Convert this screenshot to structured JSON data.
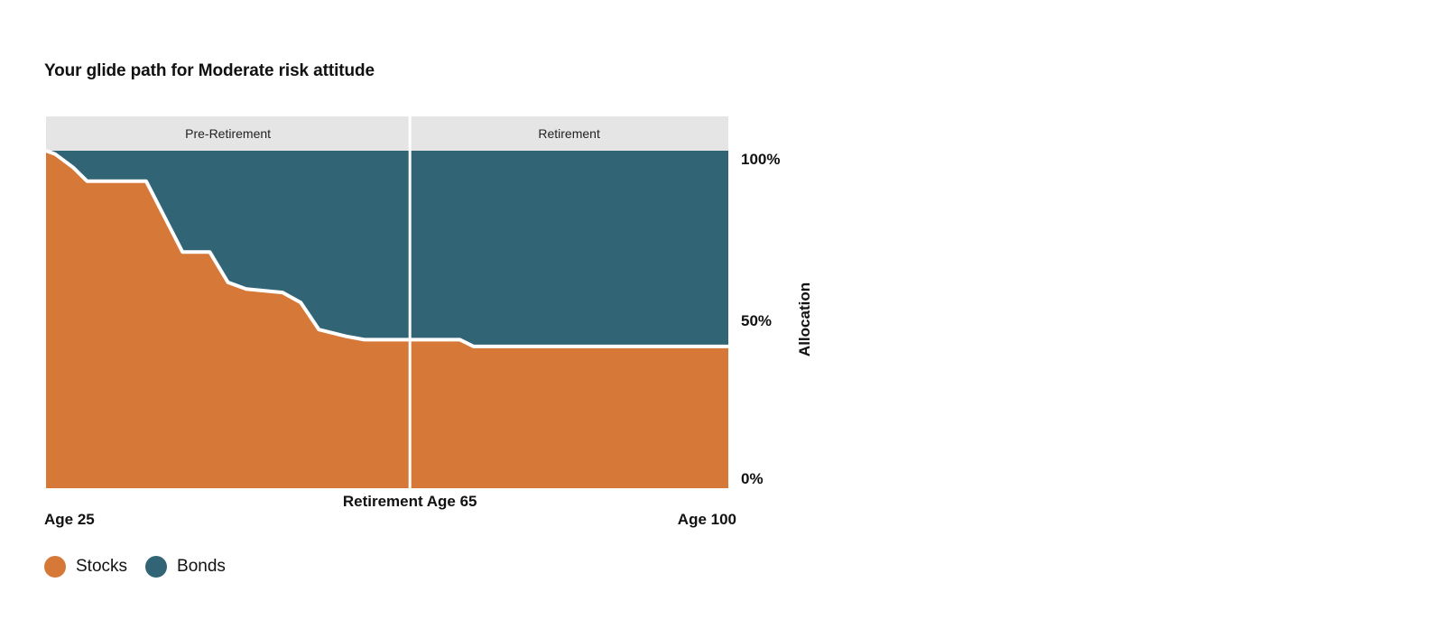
{
  "title": "Your glide path for Moderate risk attitude",
  "colors": {
    "stocks": "#D67838",
    "bonds": "#316576",
    "phase_band": "#E5E5E5",
    "divider": "#FFFFFF"
  },
  "chart_data": {
    "type": "area",
    "title": "Your glide path for Moderate risk attitude",
    "ylabel": "Allocation",
    "ylim": [
      0,
      100
    ],
    "xlim": [
      25,
      100
    ],
    "y_tick_labels": [
      "100%",
      "50%",
      "0%"
    ],
    "x_tick_labels": [
      "Age 25",
      "Retirement Age 65",
      "Age 100"
    ],
    "phases": [
      {
        "label": "Pre-Retirement",
        "range": [
          25,
          65
        ]
      },
      {
        "label": "Retirement",
        "range": [
          65,
          100
        ]
      }
    ],
    "retirement_age": 65,
    "stacked": true,
    "stocks_pct": [
      {
        "age": 25,
        "value": 100
      },
      {
        "age": 26,
        "value": 99
      },
      {
        "age": 28,
        "value": 95
      },
      {
        "age": 29.5,
        "value": 91
      },
      {
        "age": 36,
        "value": 91
      },
      {
        "age": 40,
        "value": 70
      },
      {
        "age": 43,
        "value": 70
      },
      {
        "age": 45,
        "value": 61
      },
      {
        "age": 47,
        "value": 59
      },
      {
        "age": 51,
        "value": 58
      },
      {
        "age": 53,
        "value": 55
      },
      {
        "age": 55,
        "value": 47
      },
      {
        "age": 58,
        "value": 45
      },
      {
        "age": 60,
        "value": 44
      },
      {
        "age": 65,
        "value": 44
      },
      {
        "age": 70.5,
        "value": 44
      },
      {
        "age": 72,
        "value": 42
      },
      {
        "age": 100,
        "value": 42
      }
    ],
    "series": [
      {
        "name": "Stocks"
      },
      {
        "name": "Bonds"
      }
    ]
  }
}
